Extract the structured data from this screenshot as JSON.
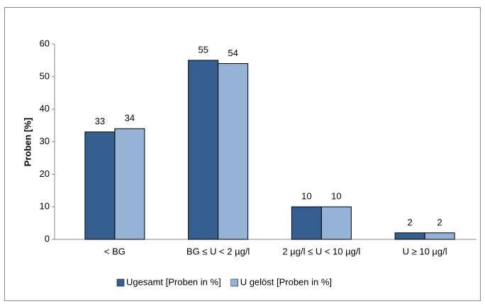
{
  "chart_data": {
    "type": "bar",
    "y_label": "Proben [%]",
    "categories": [
      "< BG",
      "BG ≤ U < 2 µg/l",
      "2 µg/l ≤ U < 10 µg/l",
      "U ≥ 10 µg/l"
    ],
    "series": [
      {
        "name": "Ugesamt [Proben in %]",
        "color": "#365f91",
        "values": [
          33,
          55,
          10,
          2
        ]
      },
      {
        "name": "U gelöst [Proben in %]",
        "color": "#95b3d7",
        "values": [
          34,
          54,
          10,
          2
        ]
      }
    ],
    "ylim": [
      0,
      60
    ],
    "yticks": [
      0,
      10,
      20,
      30,
      40,
      50,
      60
    ],
    "grid": false
  }
}
